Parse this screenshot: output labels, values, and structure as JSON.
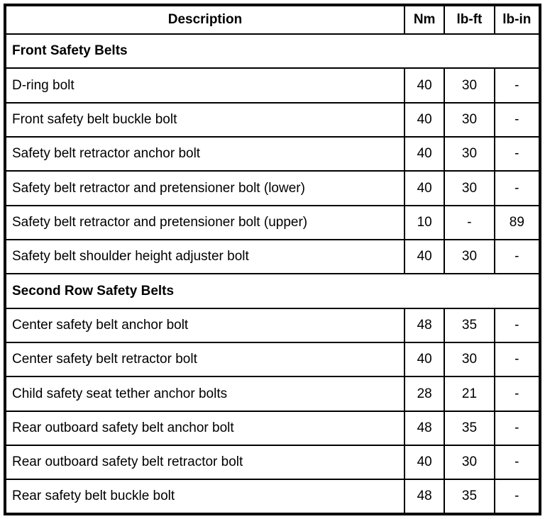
{
  "table": {
    "headers": [
      "Description",
      "Nm",
      "lb-ft",
      "lb-in"
    ],
    "sections": [
      {
        "title": "Front Safety Belts",
        "rows": [
          {
            "description": "D-ring bolt",
            "values": [
              "40",
              "30",
              "-"
            ]
          },
          {
            "description": "Front safety belt buckle bolt",
            "values": [
              "40",
              "30",
              "-"
            ]
          },
          {
            "description": "Safety belt retractor anchor bolt",
            "values": [
              "40",
              "30",
              "-"
            ]
          },
          {
            "description": "Safety belt retractor and pretensioner bolt (lower)",
            "values": [
              "40",
              "30",
              "-"
            ]
          },
          {
            "description": "Safety belt retractor and pretensioner bolt (upper)",
            "values": [
              "10",
              "-",
              "89"
            ]
          },
          {
            "description": "Safety belt shoulder height adjuster bolt",
            "values": [
              "40",
              "30",
              "-"
            ]
          }
        ]
      },
      {
        "title": "Second Row Safety Belts",
        "rows": [
          {
            "description": "Center safety belt anchor bolt",
            "values": [
              "48",
              "35",
              "-"
            ]
          },
          {
            "description": "Center safety belt retractor bolt",
            "values": [
              "40",
              "30",
              "-"
            ]
          },
          {
            "description": "Child safety seat tether anchor bolts",
            "values": [
              "28",
              "21",
              "-"
            ]
          },
          {
            "description": "Rear outboard safety belt anchor bolt",
            "values": [
              "48",
              "35",
              "-"
            ]
          },
          {
            "description": "Rear outboard safety belt retractor bolt",
            "values": [
              "40",
              "30",
              "-"
            ]
          },
          {
            "description": "Rear safety belt buckle bolt",
            "values": [
              "48",
              "35",
              "-"
            ]
          }
        ]
      }
    ]
  }
}
